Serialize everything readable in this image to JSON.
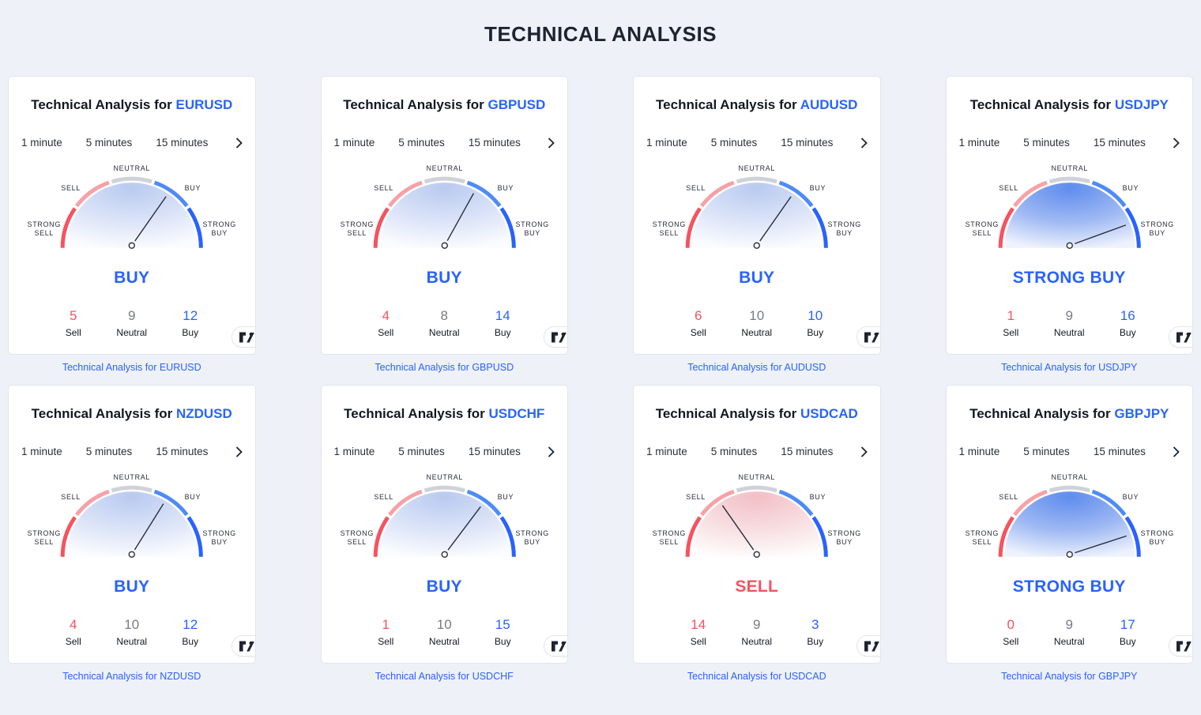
{
  "page": {
    "title": "TECHNICAL ANALYSIS"
  },
  "colors": {
    "accent_blue": "#2962FF",
    "sell_red": "#F7525F",
    "neutral_gray": "#787B86",
    "background": "#EEF1F8",
    "card_border": "#E1E4EC",
    "text_dark": "#131722"
  },
  "icons": {
    "tabs_scroll": "chevron-right",
    "brand_badge": "tradingview-logo"
  },
  "labels": {
    "title_prefix": "Technical Analysis for",
    "sell": "Sell",
    "neutral": "Neutral",
    "buy": "Buy"
  },
  "tabs": [
    "1 minute",
    "5 minutes",
    "15 minutes"
  ],
  "gauge": {
    "labels": {
      "neutral": "NEUTRAL",
      "sell": "SELL",
      "buy": "BUY",
      "strong_sell": "STRONG SELL",
      "strong_buy": "STRONG BUY"
    },
    "arc_colors": {
      "strong_sell": "#F7525F",
      "sell": "#F7A1A7",
      "neutral": "#CFD2D9",
      "buy": "#4D8BF8",
      "strong_buy": "#2962FF"
    },
    "fill_gradients": {
      "buy": [
        "#B9CAF0",
        "#DCE4F8",
        "#FBFCFE"
      ],
      "strong_buy": [
        "#5F8CEE",
        "#9FB9F3",
        "#EDF2FD"
      ],
      "sell": [
        "#F2BFC6",
        "#F8DFE2",
        "#FEFCFC"
      ]
    },
    "needle_color": "#2A2E39"
  },
  "cards": [
    {
      "symbol": "EURUSD",
      "signal": "BUY",
      "signal_color": "#2962FF",
      "mood": "buy",
      "needle_angle_deg": 55,
      "sell": 5,
      "neutral": 9,
      "buy": 12,
      "link": "Technical Analysis for EURUSD"
    },
    {
      "symbol": "GBPUSD",
      "signal": "BUY",
      "signal_color": "#2962FF",
      "mood": "buy",
      "needle_angle_deg": 61,
      "sell": 4,
      "neutral": 8,
      "buy": 14,
      "link": "Technical Analysis for GBPUSD"
    },
    {
      "symbol": "AUDUSD",
      "signal": "BUY",
      "signal_color": "#2962FF",
      "mood": "buy",
      "needle_angle_deg": 55,
      "sell": 6,
      "neutral": 10,
      "buy": 10,
      "link": "Technical Analysis for AUDUSD"
    },
    {
      "symbol": "USDJPY",
      "signal": "STRONG BUY",
      "signal_color": "#2962FF",
      "mood": "strong_buy",
      "needle_angle_deg": 20,
      "sell": 1,
      "neutral": 9,
      "buy": 16,
      "link": "Technical Analysis for USDJPY"
    },
    {
      "symbol": "NZDUSD",
      "signal": "BUY",
      "signal_color": "#2962FF",
      "mood": "buy",
      "needle_angle_deg": 58,
      "sell": 4,
      "neutral": 10,
      "buy": 12,
      "link": "Technical Analysis for NZDUSD"
    },
    {
      "symbol": "USDCHF",
      "signal": "BUY",
      "signal_color": "#2962FF",
      "mood": "buy",
      "needle_angle_deg": 53,
      "sell": 1,
      "neutral": 10,
      "buy": 15,
      "link": "Technical Analysis for USDCHF"
    },
    {
      "symbol": "USDCAD",
      "signal": "SELL",
      "signal_color": "#F7525F",
      "mood": "sell",
      "needle_angle_deg": 125,
      "sell": 14,
      "neutral": 9,
      "buy": 3,
      "link": "Technical Analysis for USDCAD"
    },
    {
      "symbol": "GBPJPY",
      "signal": "STRONG BUY",
      "signal_color": "#2962FF",
      "mood": "strong_buy",
      "needle_angle_deg": 18,
      "sell": 0,
      "neutral": 9,
      "buy": 17,
      "link": "Technical Analysis for GBPJPY"
    }
  ]
}
